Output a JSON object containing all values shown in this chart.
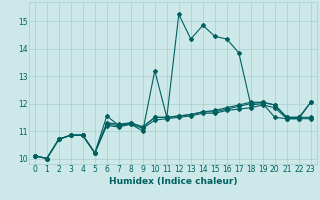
{
  "xlabel": "Humidex (Indice chaleur)",
  "background_color": "#cce8e8",
  "line_color": "#006060",
  "xlim": [
    -0.5,
    23.5
  ],
  "ylim": [
    9.8,
    15.7
  ],
  "xticks": [
    0,
    1,
    2,
    3,
    4,
    5,
    6,
    7,
    8,
    9,
    10,
    11,
    12,
    13,
    14,
    15,
    16,
    17,
    18,
    19,
    20,
    21,
    22,
    23
  ],
  "yticks": [
    10,
    11,
    12,
    13,
    14,
    15
  ],
  "series": [
    [
      10.1,
      10.0,
      10.7,
      10.85,
      10.85,
      10.2,
      11.55,
      11.2,
      11.25,
      11.0,
      13.2,
      11.5,
      15.25,
      14.35,
      14.85,
      14.45,
      14.35,
      13.85,
      11.95,
      12.0,
      11.5,
      11.45,
      11.45,
      12.05
    ],
    [
      10.1,
      10.0,
      10.7,
      10.85,
      10.85,
      10.2,
      11.2,
      11.15,
      11.25,
      11.1,
      11.4,
      11.45,
      11.5,
      11.55,
      11.65,
      11.65,
      11.75,
      11.8,
      11.85,
      11.95,
      11.85,
      11.45,
      11.45,
      11.45
    ],
    [
      10.1,
      10.0,
      10.7,
      10.85,
      10.85,
      10.2,
      11.25,
      11.2,
      11.3,
      11.15,
      11.5,
      11.5,
      11.55,
      11.6,
      11.7,
      11.7,
      11.8,
      11.9,
      12.0,
      12.05,
      11.95,
      11.5,
      11.5,
      12.05
    ],
    [
      10.1,
      10.0,
      10.7,
      10.85,
      10.85,
      10.2,
      11.3,
      11.25,
      11.3,
      11.15,
      11.5,
      11.5,
      11.55,
      11.6,
      11.7,
      11.75,
      11.85,
      11.95,
      12.05,
      12.05,
      11.95,
      11.5,
      11.5,
      11.5
    ]
  ],
  "grid_color": "#aacece",
  "marker": "D",
  "markersize": 2.0,
  "linewidth": 0.8,
  "tick_fontsize": 5.5,
  "xlabel_fontsize": 6.5
}
